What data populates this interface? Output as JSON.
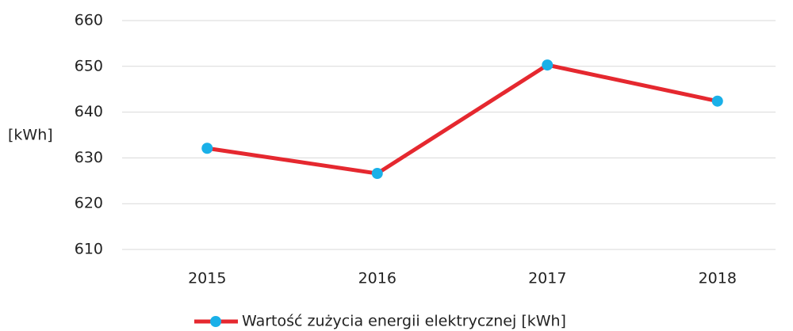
{
  "chart_data": {
    "type": "line",
    "y_label": "[kWh]",
    "categories": [
      "2015",
      "2016",
      "2017",
      "2018"
    ],
    "series": [
      {
        "name": "Wartość zużycia energii elektrycznej [kWh]",
        "color": "#e5282f",
        "marker_color": "#1ab0e8",
        "values": [
          632.1,
          626.6,
          650.3,
          642.4
        ]
      }
    ],
    "ylim": [
      610,
      660
    ],
    "yticks": [
      610,
      620,
      630,
      640,
      650,
      660
    ],
    "grid": true,
    "legend": "bottom"
  }
}
